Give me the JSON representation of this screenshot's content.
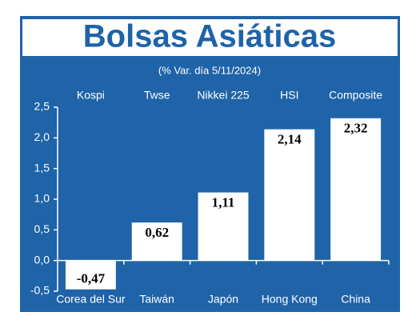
{
  "chart_data": {
    "type": "bar",
    "title": "Bolsas Asiáticas",
    "subtitle": "(% Var. día 5/11/2024)",
    "index_names": [
      "Kospi",
      "Twse",
      "Nikkei 225",
      "HSI",
      "Composite"
    ],
    "categories": [
      "Corea del Sur",
      "Taiwán",
      "Japón",
      "Hong Kong",
      "China"
    ],
    "values": [
      -0.47,
      0.62,
      1.11,
      2.14,
      2.32
    ],
    "value_labels": [
      "-0,47",
      "0,62",
      "1,11",
      "2,14",
      "2,32"
    ],
    "color": "#ffffff",
    "background": "#1f63a8",
    "ylim": [
      -0.5,
      2.5
    ],
    "yticks": [
      {
        "value": -0.5,
        "label": "-0,5"
      },
      {
        "value": 0,
        "label": "0,0"
      },
      {
        "value": 0.5,
        "label": "0,5"
      },
      {
        "value": 1,
        "label": "1,0"
      },
      {
        "value": 1.5,
        "label": "1,5"
      },
      {
        "value": 2,
        "label": "2,0"
      },
      {
        "value": 2.5,
        "label": "2,5"
      }
    ]
  }
}
